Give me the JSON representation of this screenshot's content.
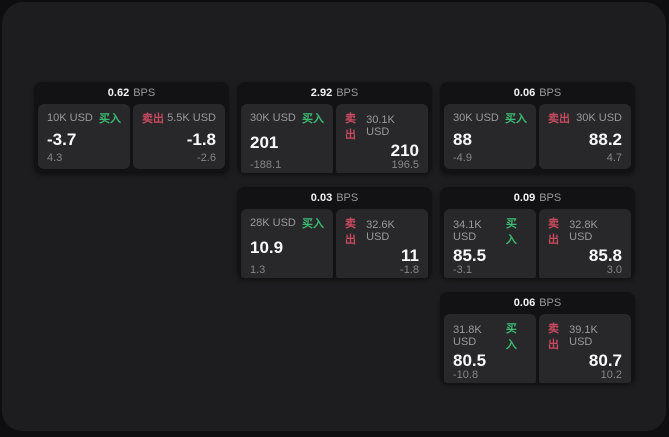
{
  "colors": {
    "outer_bg": "#0e0e10",
    "panel_bg": "#1d1d1f",
    "card_bg": "#121214",
    "tile_bg": "#28282a",
    "label": "#9a9a9c",
    "muted": "#86868a",
    "buy": "#3cba72",
    "sell": "#c94a5f"
  },
  "labels": {
    "bps": "BPS",
    "buy": "买入",
    "sell": "卖出"
  },
  "cards": [
    {
      "row": 1,
      "col": 1,
      "bps": "0.62",
      "buy": {
        "amount": "10K USD",
        "price": "-3.7",
        "delta": "4.3"
      },
      "sell": {
        "amount": "5.5K USD",
        "price": "-1.8",
        "delta": "-2.6"
      }
    },
    {
      "row": 1,
      "col": 2,
      "bps": "2.92",
      "buy": {
        "amount": "30K USD",
        "price": "201",
        "delta": "-188.1"
      },
      "sell": {
        "amount": "30.1K USD",
        "price": "210",
        "delta": "196.5"
      }
    },
    {
      "row": 1,
      "col": 3,
      "bps": "0.06",
      "buy": {
        "amount": "30K USD",
        "price": "88",
        "delta": "-4.9"
      },
      "sell": {
        "amount": "30K USD",
        "price": "88.2",
        "delta": "4.7"
      }
    },
    {
      "row": 2,
      "col": 2,
      "bps": "0.03",
      "buy": {
        "amount": "28K USD",
        "price": "10.9",
        "delta": "1.3"
      },
      "sell": {
        "amount": "32.6K USD",
        "price": "11",
        "delta": "-1.8"
      }
    },
    {
      "row": 2,
      "col": 3,
      "bps": "0.09",
      "buy": {
        "amount": "34.1K USD",
        "price": "85.5",
        "delta": "-3.1"
      },
      "sell": {
        "amount": "32.8K USD",
        "price": "85.8",
        "delta": "3.0"
      }
    },
    {
      "row": 3,
      "col": 3,
      "bps": "0.06",
      "buy": {
        "amount": "31.8K USD",
        "price": "80.5",
        "delta": "-10.8"
      },
      "sell": {
        "amount": "39.1K USD",
        "price": "80.7",
        "delta": "10.2"
      }
    }
  ]
}
